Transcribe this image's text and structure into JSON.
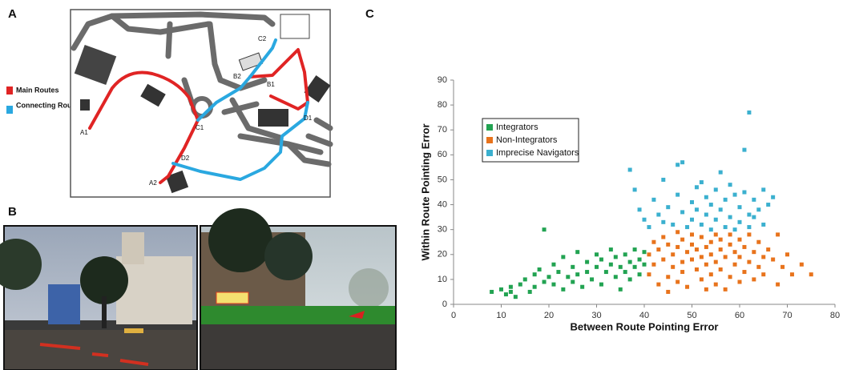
{
  "panels": {
    "a": "A",
    "b": "B",
    "c": "C"
  },
  "map": {
    "legend": [
      {
        "label": "Main Routes",
        "color": "#e02424"
      },
      {
        "label": "Connecting Routes",
        "color": "#2aa8e0"
      }
    ],
    "points": [
      "A1",
      "A2",
      "B1",
      "B2",
      "C1",
      "C2",
      "D1",
      "D2"
    ]
  },
  "chart_data": {
    "type": "scatter",
    "xlabel": "Between Route Pointing Error",
    "ylabel": "Within Route Pointing Error",
    "xlim": [
      0,
      80
    ],
    "xticks": [
      0,
      10,
      20,
      30,
      40,
      50,
      60,
      70,
      80
    ],
    "ylim": [
      0,
      90
    ],
    "yticks": [
      0,
      10,
      20,
      30,
      40,
      50,
      60,
      70,
      80,
      90
    ],
    "legend": "upper left",
    "series": [
      {
        "name": "Integrators",
        "color": "#22a352",
        "x": [
          8,
          10,
          11,
          12,
          12,
          13,
          14,
          15,
          16,
          17,
          17,
          18,
          19,
          19,
          20,
          21,
          21,
          22,
          23,
          23,
          24,
          25,
          25,
          26,
          26,
          27,
          28,
          28,
          29,
          30,
          30,
          31,
          31,
          32,
          33,
          33,
          34,
          34,
          35,
          35,
          36,
          36,
          37,
          37,
          38,
          38,
          39,
          39,
          40,
          40
        ],
        "values": [
          5,
          6,
          4,
          7,
          5,
          3,
          8,
          10,
          5,
          12,
          7,
          14,
          30,
          9,
          11,
          16,
          8,
          13,
          19,
          6,
          11,
          15,
          9,
          21,
          12,
          7,
          17,
          13,
          10,
          20,
          15,
          8,
          18,
          13,
          22,
          16,
          11,
          19,
          15,
          6,
          20,
          13,
          17,
          10,
          22,
          15,
          12,
          18,
          16,
          21
        ]
      },
      {
        "name": "Non-Integrators",
        "color": "#e8731c",
        "x": [
          41,
          41,
          42,
          42,
          43,
          43,
          44,
          44,
          45,
          45,
          46,
          46,
          47,
          47,
          47,
          48,
          48,
          48,
          49,
          49,
          50,
          50,
          50,
          51,
          51,
          52,
          52,
          52,
          53,
          53,
          54,
          54,
          54,
          55,
          55,
          55,
          56,
          56,
          56,
          57,
          57,
          58,
          58,
          58,
          59,
          59,
          60,
          60,
          60,
          61,
          61,
          62,
          62,
          63,
          63,
          64,
          64,
          65,
          65,
          66,
          67,
          68,
          68,
          69,
          70,
          71,
          73,
          75,
          45,
          53
        ],
        "values": [
          12,
          20,
          25,
          16,
          8,
          22,
          18,
          27,
          11,
          24,
          15,
          20,
          29,
          9,
          23,
          17,
          26,
          13,
          21,
          7,
          28,
          18,
          24,
          14,
          22,
          10,
          27,
          19,
          16,
          23,
          12,
          25,
          20,
          8,
          28,
          17,
          22,
          14,
          26,
          19,
          6,
          24,
          11,
          28,
          16,
          21,
          9,
          26,
          19,
          13,
          23,
          17,
          28,
          10,
          21,
          25,
          15,
          19,
          12,
          22,
          18,
          28,
          8,
          15,
          20,
          12,
          16,
          12,
          5,
          6
        ]
      },
      {
        "name": "Imprecise Navigators",
        "color": "#3bb0cf",
        "x": [
          37,
          38,
          39,
          40,
          41,
          42,
          43,
          44,
          44,
          45,
          46,
          47,
          47,
          48,
          48,
          49,
          50,
          50,
          51,
          51,
          52,
          52,
          53,
          53,
          54,
          54,
          55,
          55,
          56,
          56,
          57,
          57,
          58,
          58,
          59,
          59,
          60,
          60,
          61,
          61,
          62,
          62,
          62,
          63,
          63,
          64,
          65,
          65,
          66,
          67
        ],
        "values": [
          54,
          46,
          38,
          34,
          31,
          42,
          36,
          50,
          33,
          39,
          32,
          56,
          44,
          37,
          57,
          31,
          41,
          34,
          47,
          38,
          32,
          49,
          43,
          36,
          30,
          40,
          46,
          34,
          53,
          38,
          42,
          31,
          48,
          35,
          44,
          30,
          39,
          33,
          62,
          45,
          77,
          36,
          31,
          42,
          35,
          38,
          46,
          32,
          40,
          43
        ]
      }
    ]
  }
}
